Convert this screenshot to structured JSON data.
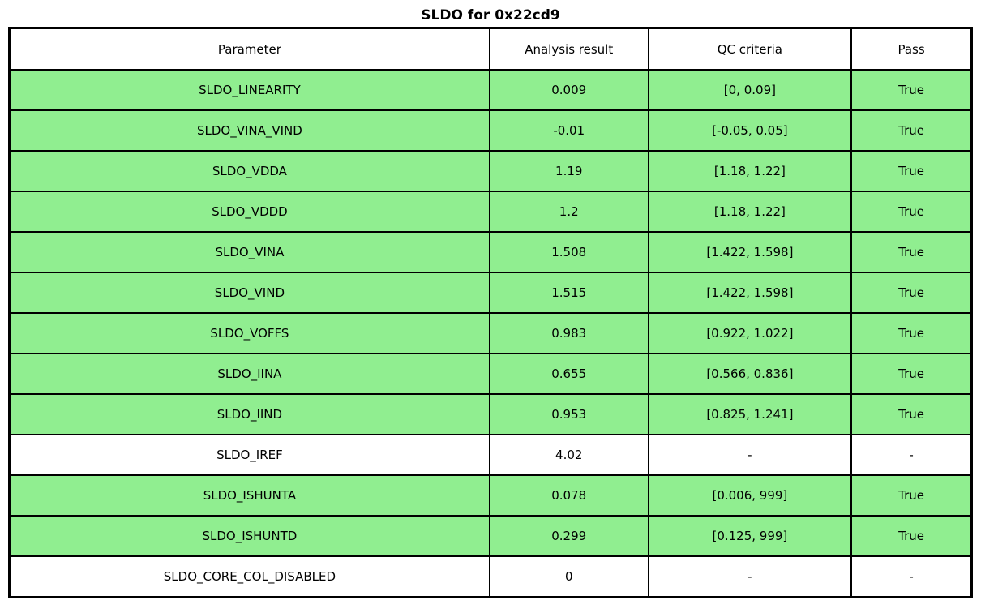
{
  "title": "SLDO for 0x22cd9",
  "chart_data": {
    "type": "table",
    "title": "SLDO for 0x22cd9",
    "columns": [
      "Parameter",
      "Analysis result",
      "QC criteria",
      "Pass"
    ],
    "rows": [
      {
        "parameter": "SLDO_LINEARITY",
        "result": "0.009",
        "criteria": "[0, 0.09]",
        "pass": "True",
        "highlight": true
      },
      {
        "parameter": "SLDO_VINA_VIND",
        "result": "-0.01",
        "criteria": "[-0.05, 0.05]",
        "pass": "True",
        "highlight": true
      },
      {
        "parameter": "SLDO_VDDA",
        "result": "1.19",
        "criteria": "[1.18, 1.22]",
        "pass": "True",
        "highlight": true
      },
      {
        "parameter": "SLDO_VDDD",
        "result": "1.2",
        "criteria": "[1.18, 1.22]",
        "pass": "True",
        "highlight": true
      },
      {
        "parameter": "SLDO_VINA",
        "result": "1.508",
        "criteria": "[1.422, 1.598]",
        "pass": "True",
        "highlight": true
      },
      {
        "parameter": "SLDO_VIND",
        "result": "1.515",
        "criteria": "[1.422, 1.598]",
        "pass": "True",
        "highlight": true
      },
      {
        "parameter": "SLDO_VOFFS",
        "result": "0.983",
        "criteria": "[0.922, 1.022]",
        "pass": "True",
        "highlight": true
      },
      {
        "parameter": "SLDO_IINA",
        "result": "0.655",
        "criteria": "[0.566, 0.836]",
        "pass": "True",
        "highlight": true
      },
      {
        "parameter": "SLDO_IIND",
        "result": "0.953",
        "criteria": "[0.825, 1.241]",
        "pass": "True",
        "highlight": true
      },
      {
        "parameter": "SLDO_IREF",
        "result": "4.02",
        "criteria": "-",
        "pass": "-",
        "highlight": false
      },
      {
        "parameter": "SLDO_ISHUNTA",
        "result": "0.078",
        "criteria": "[0.006, 999]",
        "pass": "True",
        "highlight": true
      },
      {
        "parameter": "SLDO_ISHUNTD",
        "result": "0.299",
        "criteria": "[0.125, 999]",
        "pass": "True",
        "highlight": true
      },
      {
        "parameter": "SLDO_CORE_COL_DISABLED",
        "result": "0",
        "criteria": "-",
        "pass": "-",
        "highlight": false
      }
    ],
    "colors": {
      "pass_row_bg": "#90EE90",
      "neutral_row_bg": "#FFFFFF",
      "border": "#000000",
      "text": "#000000"
    },
    "legend_position": "none",
    "grid": true
  }
}
